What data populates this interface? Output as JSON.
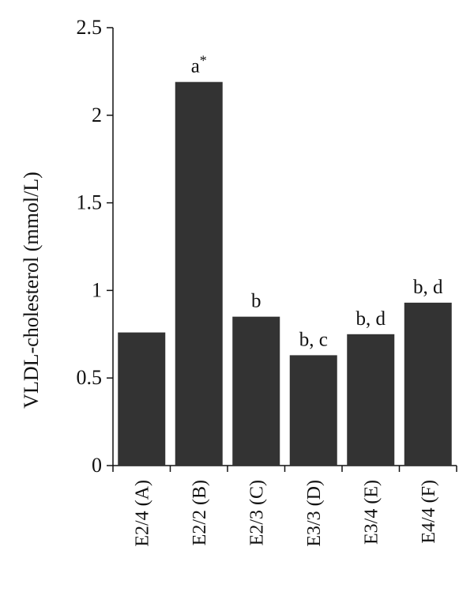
{
  "chart_data": {
    "type": "bar",
    "title": "",
    "xlabel": "",
    "ylabel": "VLDL-cholesterol (mmol/L)",
    "ylim": [
      0,
      2.5
    ],
    "yticks": [
      "0",
      "0.5",
      "1",
      "1.5",
      "2",
      "2.5"
    ],
    "categories": [
      "E2/4 (A)",
      "E2/2 (B)",
      "E2/3 (C)",
      "E3/3 (D)",
      "E3/4 (E)",
      "E4/4 (F)"
    ],
    "values": [
      0.76,
      2.19,
      0.85,
      0.63,
      0.75,
      0.93
    ],
    "annotations": [
      "",
      "a*",
      "b",
      "b, c",
      "b, d",
      "b, d"
    ],
    "bar_color": "#333333",
    "grid": false,
    "legend": "none"
  }
}
